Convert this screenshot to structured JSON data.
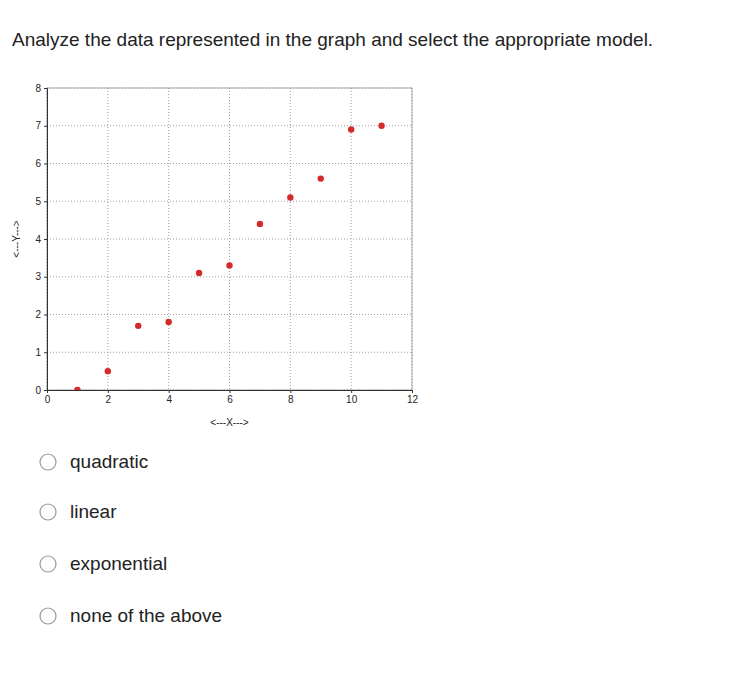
{
  "question": "Analyze the data represented in the graph and select the appropriate model.",
  "choices": [
    "quadratic",
    "linear",
    "exponential",
    "none of the above"
  ],
  "chart_data": {
    "type": "scatter",
    "x_label": "<---X--->",
    "y_label": "<---Y--->",
    "x": [
      1,
      2,
      3,
      4,
      5,
      6,
      7,
      8,
      9,
      10,
      11
    ],
    "values": [
      0,
      0.5,
      1.7,
      1.8,
      3.1,
      3.3,
      4.4,
      5.1,
      5.6,
      6.9,
      7.0
    ],
    "color": "#d42a2a",
    "marker": "circle",
    "xlim": [
      0,
      12
    ],
    "xticks": [
      0,
      2,
      4,
      6,
      8,
      10,
      12
    ],
    "ylim": [
      0,
      8
    ],
    "yticks": [
      0,
      1,
      2,
      3,
      4,
      5,
      6,
      7,
      8
    ],
    "grid": true
  }
}
